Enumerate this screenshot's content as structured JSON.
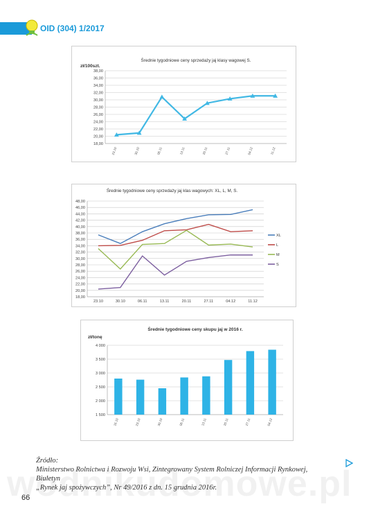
{
  "header": {
    "journal": "OID (304) 1/2017"
  },
  "chart_data": [
    {
      "type": "line",
      "title": "Średnie tygodniowe ceny sprzedaży jaj klasy wagowej S.",
      "ylabel": "zł/100szt.",
      "xlabel": "",
      "categories": [
        "23.10",
        "30.10",
        "06.11",
        "13.11",
        "20.11",
        "27.11",
        "04.12",
        "11.12"
      ],
      "series": [
        {
          "name": "S",
          "values": [
            20.4,
            20.9,
            30.8,
            24.8,
            29.1,
            30.3,
            31.1,
            31.1
          ]
        }
      ],
      "yticks": [
        "18,00",
        "20,00",
        "22,00",
        "24,00",
        "26,00",
        "28,00",
        "30,00",
        "32,00",
        "34,00",
        "36,00",
        "38,00"
      ],
      "ylim": [
        18,
        38
      ],
      "color": "#41b8e4",
      "grid": true,
      "legend": "none"
    },
    {
      "type": "line",
      "title": "Średnie tygodniowe ceny sprzedaży jaj klas wagowych: XL, L, M, S.",
      "ylabel": "",
      "xlabel": "",
      "categories": [
        "23.10",
        "30.10",
        "06.11",
        "13.11",
        "20.11",
        "27.11",
        "04.12",
        "11.12"
      ],
      "series": [
        {
          "name": "XL",
          "color": "#4a7ebb",
          "values": [
            37.4,
            34.7,
            38.4,
            40.9,
            42.5,
            43.7,
            43.8,
            45.3
          ]
        },
        {
          "name": "L",
          "color": "#be4b48",
          "values": [
            34.0,
            34.1,
            35.7,
            38.7,
            39.0,
            40.7,
            38.4,
            38.7
          ]
        },
        {
          "name": "M",
          "color": "#98b954",
          "values": [
            33.1,
            26.7,
            34.4,
            34.7,
            38.8,
            34.2,
            34.5,
            33.6
          ]
        },
        {
          "name": "S",
          "color": "#7d60a0",
          "values": [
            20.4,
            20.9,
            30.8,
            24.8,
            29.1,
            30.3,
            31.1,
            31.1
          ]
        }
      ],
      "yticks": [
        "18,00",
        "20,00",
        "22,00",
        "24,00",
        "26,00",
        "28,00",
        "30,00",
        "32,00",
        "34,00",
        "36,00",
        "38,00",
        "40,00",
        "42,00",
        "44,00",
        "46,00",
        "48,00"
      ],
      "ylim": [
        18,
        48
      ],
      "grid": true,
      "legend": "right"
    },
    {
      "type": "bar",
      "title": "Średnie tygodniowe ceny skupu jaj w 2016 r.",
      "ylabel": "zł/tonę",
      "xlabel": "",
      "categories": [
        "16.10",
        "23.10",
        "30.10",
        "06.11",
        "13.11",
        "20.11",
        "27.11",
        "04.12"
      ],
      "values": [
        2800,
        2760,
        2450,
        2840,
        2880,
        3470,
        3790,
        3840
      ],
      "yticks": [
        "1 500",
        "2 000",
        "2 500",
        "3 000",
        "3 500",
        "4 000"
      ],
      "ylim": [
        1500,
        4000
      ],
      "color": "#2eb3e6",
      "grid": true,
      "legend": "none"
    }
  ],
  "source": {
    "label": "Źródło:",
    "line1": "Ministerstwo Rolnictwa i Rozwoju Wsi, Zintegrowany System Rolniczej Informacji Rynkowej, Biuletyn",
    "line2": "„Rynek jaj spożywczych”, Nr 49/2016 z dn. 15 grudnia 2016r."
  },
  "page_number": "66",
  "watermark": "wodnikudomowe.pl"
}
